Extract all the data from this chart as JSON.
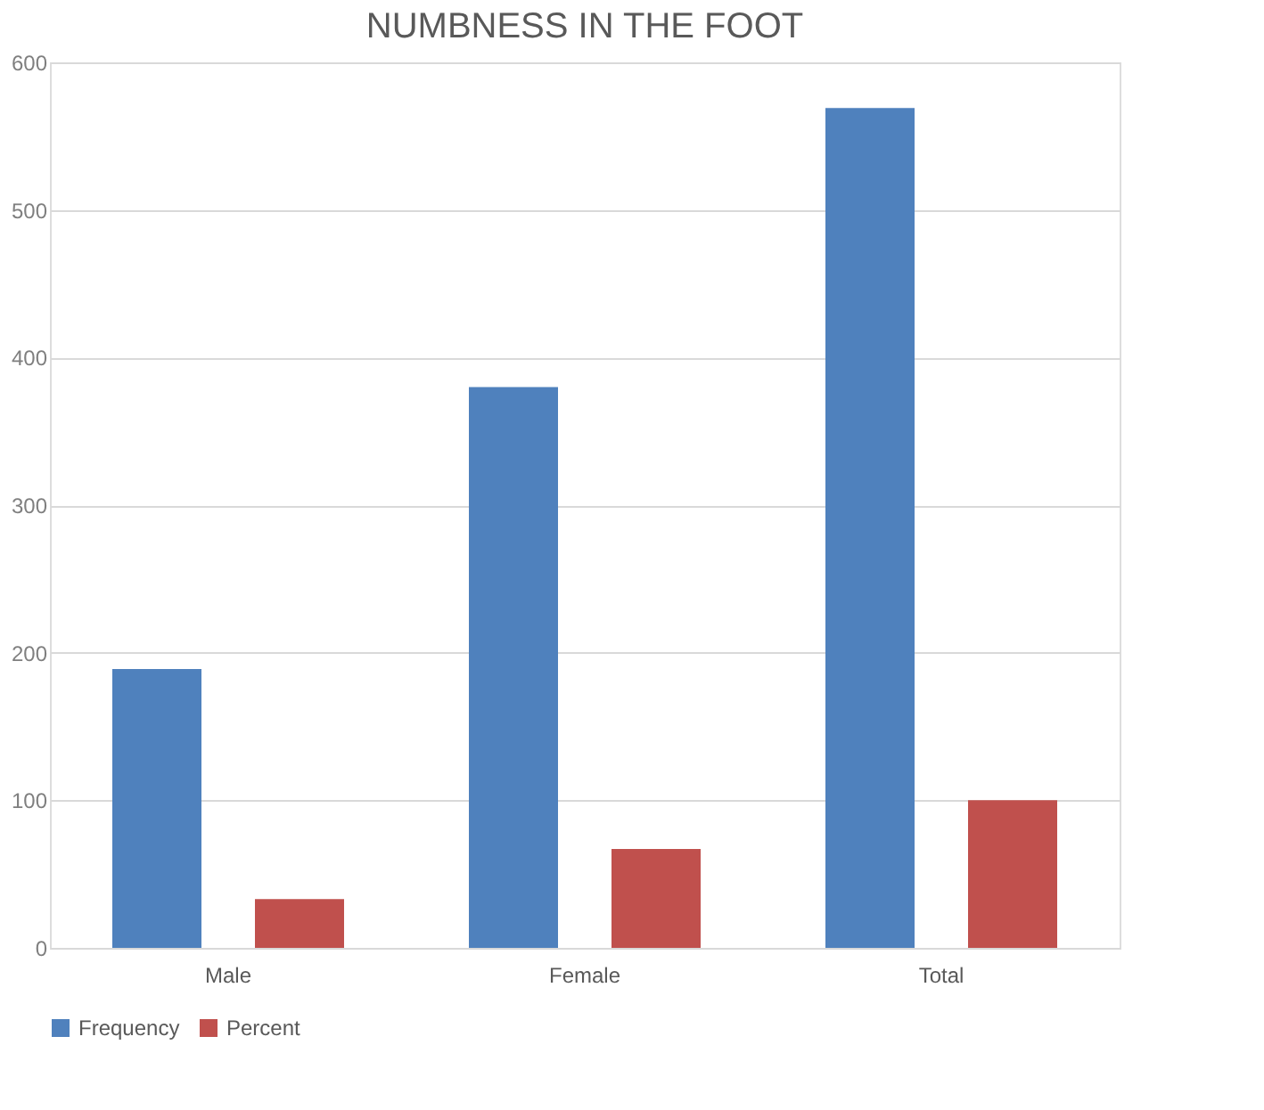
{
  "chart_data": {
    "type": "bar",
    "title": "NUMBNESS  IN THE FOOT",
    "categories": [
      "Male",
      "Female",
      "Total"
    ],
    "series": [
      {
        "name": "Frequency",
        "color": "#4f81bd",
        "values": [
          189,
          380,
          569
        ]
      },
      {
        "name": "Percent",
        "color": "#c0504d",
        "values": [
          33,
          67,
          100
        ]
      }
    ],
    "ylim": [
      0,
      600
    ],
    "yticks": [
      0,
      100,
      200,
      300,
      400,
      500,
      600
    ],
    "grid": "y",
    "legend": "bottom"
  }
}
